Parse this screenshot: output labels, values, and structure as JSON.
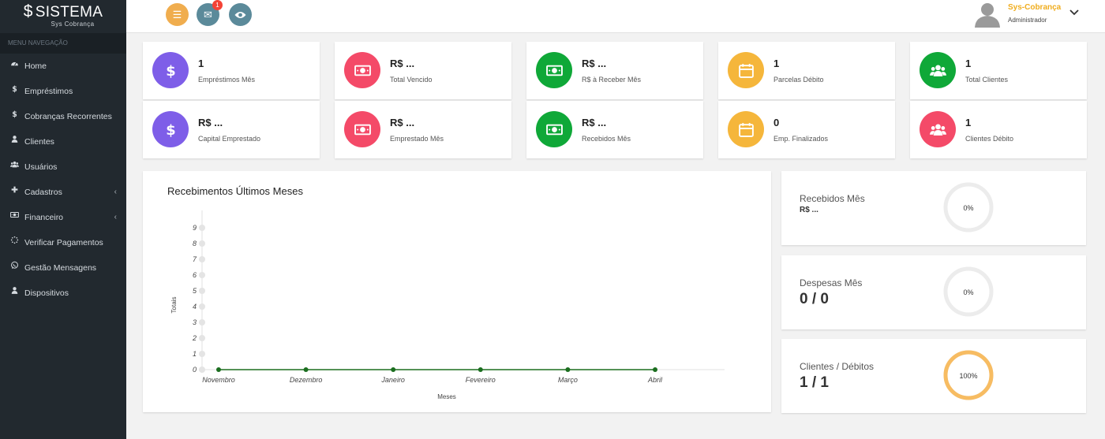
{
  "brand": {
    "title": "SISTEMA",
    "subtitle": "Sys Cobrança"
  },
  "sidebar": {
    "header": "MENU NAVEGAÇÃO",
    "items": [
      {
        "label": "Home",
        "icon": "dashboard-icon"
      },
      {
        "label": "Empréstimos",
        "icon": "dollar-icon"
      },
      {
        "label": "Cobranças Recorrentes",
        "icon": "dollar-icon"
      },
      {
        "label": "Clientes",
        "icon": "user-icon"
      },
      {
        "label": "Usuários",
        "icon": "users-icon"
      },
      {
        "label": "Cadastros",
        "icon": "plus-icon",
        "arrow": "‹"
      },
      {
        "label": "Financeiro",
        "icon": "money-icon",
        "arrow": "‹"
      },
      {
        "label": "Verificar Pagamentos",
        "icon": "spinner-icon"
      },
      {
        "label": "Gestão Mensagens",
        "icon": "whatsapp-icon"
      },
      {
        "label": "Dispositivos",
        "icon": "user-icon"
      }
    ]
  },
  "topbar": {
    "menu_color": "#f0ad4e",
    "messages_badge": "1",
    "messages_color": "#5b8a9a",
    "view_color": "#5b8a9a",
    "user_name": "Sys-Cobrança",
    "user_role": "Administrador"
  },
  "cards": [
    {
      "value": "1",
      "label": "Empréstimos Mês",
      "icon": "dollar-icon",
      "color": "#7e5ee8"
    },
    {
      "value": "R$ ...",
      "label": "Total Vencido",
      "icon": "money-icon",
      "color": "#f44a68"
    },
    {
      "value": "R$ ...",
      "label": "R$ à Receber Mês",
      "icon": "money-icon",
      "color": "#0fa838"
    },
    {
      "value": "1",
      "label": "Parcelas Débito",
      "icon": "calendar-icon",
      "color": "#f5b63b"
    },
    {
      "value": "1",
      "label": "Total Clientes",
      "icon": "users-icon",
      "color": "#0fa838"
    },
    {
      "value": "R$ ...",
      "label": "Capital Emprestado",
      "icon": "dollar-icon",
      "color": "#7e5ee8"
    },
    {
      "value": "R$ ...",
      "label": "Emprestado Mês",
      "icon": "money-icon",
      "color": "#f44a68"
    },
    {
      "value": "R$ ...",
      "label": "Recebidos Mês",
      "icon": "money-icon",
      "color": "#0fa838"
    },
    {
      "value": "0",
      "label": "Emp. Finalizados",
      "icon": "calendar-icon",
      "color": "#f5b63b"
    },
    {
      "value": "1",
      "label": "Clientes Débito",
      "icon": "users-icon",
      "color": "#f44a68"
    }
  ],
  "chart_data": {
    "type": "line",
    "title": "Recebimentos Últimos Meses",
    "xlabel": "Meses",
    "ylabel": "Totais",
    "categories": [
      "Novembro",
      "Dezembro",
      "Janeiro",
      "Fevereiro",
      "Março",
      "Abril"
    ],
    "series": [
      {
        "values": [
          0,
          0,
          0,
          0,
          0,
          0
        ],
        "color": "#1b6e1f"
      }
    ],
    "ylim": [
      0,
      9
    ],
    "yticks": [
      "0",
      "1",
      "2",
      "3",
      "4",
      "5",
      "6",
      "7",
      "8",
      "9"
    ],
    "grid": false
  },
  "stats": [
    {
      "label": "Recebidos Mês",
      "value": "R$ ...",
      "percent_text": "0%",
      "percent": 0,
      "color": "#e8e8e8"
    },
    {
      "label": "Despesas Mês",
      "value": "0 / 0",
      "percent_text": "0%",
      "percent": 0,
      "color": "#e8e8e8"
    },
    {
      "label": "Clientes / Débitos",
      "value": "1 / 1",
      "percent_text": "100%",
      "percent": 100,
      "color": "#f7bc62"
    }
  ]
}
